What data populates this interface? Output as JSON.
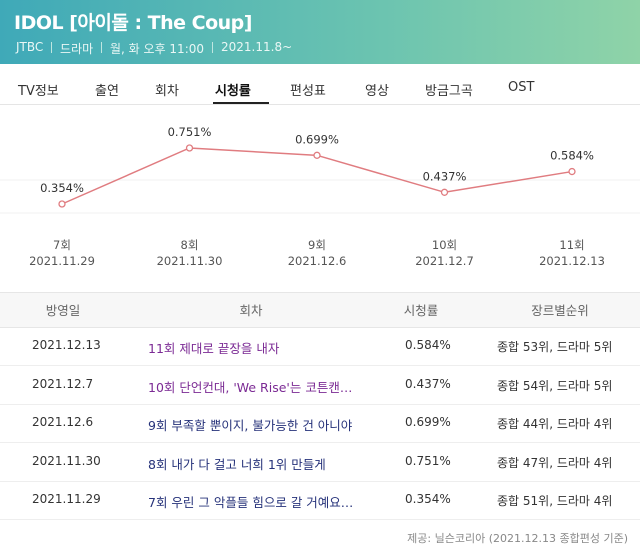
{
  "header": {
    "title": "IDOL [아이돌 : The Coup]",
    "meta": [
      "JTBC",
      "드라마",
      "월, 화 오후 11:00",
      "2021.11.8~"
    ]
  },
  "tabs": [
    "TV정보",
    "출연",
    "회차",
    "시청률",
    "편성표",
    "영상",
    "방금그곡",
    "OST"
  ],
  "chart_data": {
    "type": "line",
    "categories": [
      "7회",
      "8회",
      "9회",
      "10회",
      "11회"
    ],
    "dates": [
      "2021.11.29",
      "2021.11.30",
      "2021.12.6",
      "2021.12.7",
      "2021.12.13"
    ],
    "values": [
      0.354,
      0.751,
      0.699,
      0.437,
      0.584
    ],
    "value_labels": [
      "0.354%",
      "0.751%",
      "0.699%",
      "0.437%",
      "0.584%"
    ],
    "color": "#e07c80"
  },
  "table": {
    "columns": [
      "방영일",
      "회차",
      "시청률",
      "장르별순위"
    ],
    "rows": [
      [
        "2021.12.13",
        "11회 제대로 끝장을 내자",
        "0.584%",
        "종합 53위, 드라마 5위"
      ],
      [
        "2021.12.7",
        "10회 단언컨대, 'We Rise'는 코튼캔…",
        "0.437%",
        "종합 54위, 드라마 5위"
      ],
      [
        "2021.12.6",
        "9회 부족할 뿐이지, 불가능한 건 아니야",
        "0.699%",
        "종합 44위, 드라마 4위"
      ],
      [
        "2021.11.30",
        "8회 내가 다 걸고 너희 1위 만들게",
        "0.751%",
        "종합 47위, 드라마 4위"
      ],
      [
        "2021.11.29",
        "7회 우린 그 악플들 힘으로 갈 거예요…",
        "0.354%",
        "종합 51위, 드라마 4위"
      ]
    ]
  },
  "footer": "제공: 닐슨코리아 (2021.12.13 종합편성 기준)"
}
